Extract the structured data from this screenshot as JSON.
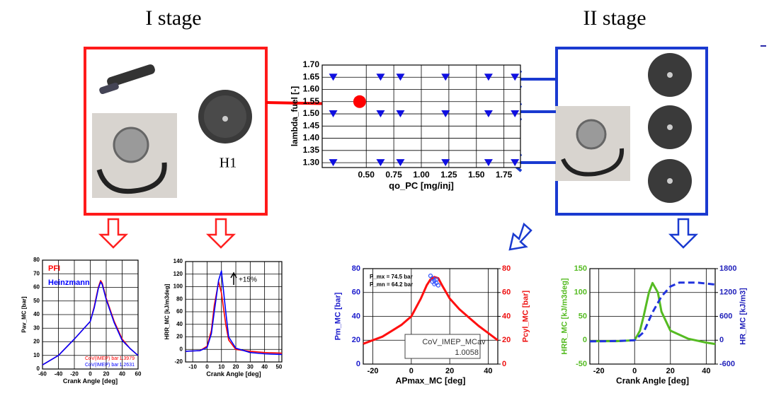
{
  "labels": {
    "stage1": "I stage",
    "stage2": "II stage",
    "h1": "H1"
  },
  "chart_data": [
    {
      "type": "scatter",
      "xlabel": "qo_PC [mg/inj]",
      "ylabel": "lambda_fuel [-]",
      "xlim": [
        0.1,
        1.9
      ],
      "xticks": [
        {
          "value": 0.5,
          "label": "0.50"
        },
        {
          "value": 0.75,
          "label": "0.75"
        },
        {
          "value": 1.0,
          "label": "1.00"
        },
        {
          "value": 1.25,
          "label": "1.25"
        },
        {
          "value": 1.5,
          "label": "1.50"
        },
        {
          "value": 1.75,
          "label": "1.75"
        }
      ],
      "ylim": [
        1.28,
        1.7
      ],
      "yticks": [
        {
          "value": 1.3,
          "label": "1.30"
        },
        1.35,
        {
          "value": 1.4,
          "label": "1.40"
        },
        1.45,
        {
          "value": 1.5,
          "label": "1.50"
        },
        1.55,
        {
          "value": 1.6,
          "label": "1.60"
        },
        1.65,
        {
          "value": 1.7,
          "label": "1.70"
        }
      ],
      "grid": true,
      "series": [
        {
          "color": "#1010e0",
          "marker": "triangle",
          "x": [
            0.2,
            0.63,
            0.81,
            1.22,
            1.61,
            1.85,
            0.2,
            0.63,
            0.81,
            1.22,
            1.61,
            1.85,
            0.2,
            0.63,
            0.81,
            1.22,
            1.61,
            1.85
          ],
          "values": [
            1.65,
            1.65,
            1.65,
            1.65,
            1.65,
            1.65,
            1.5,
            1.5,
            1.5,
            1.5,
            1.5,
            1.5,
            1.3,
            1.3,
            1.3,
            1.3,
            1.3,
            1.3
          ]
        },
        {
          "color": "#ff0000",
          "marker": "circle",
          "x": [
            0.44
          ],
          "values": [
            1.55
          ]
        }
      ]
    },
    {
      "type": "line",
      "xlabel": "Crank Angle [deg]",
      "ylabel": "Pav_MC [bar]",
      "xlim": [
        -60,
        60
      ],
      "xticks": [
        -60,
        -40,
        -20,
        0,
        20,
        40,
        60
      ],
      "ylim": [
        0,
        80
      ],
      "yticks": [
        0,
        10,
        20,
        30,
        40,
        50,
        60,
        70,
        80
      ],
      "grid": true,
      "annotations": [
        "CoV(IMEP)  bar",
        "1.3979",
        "CoV(IMEP)  bar",
        "1.2631"
      ],
      "series": [
        {
          "name": "PFI",
          "color": "#ff0000",
          "x": [
            -60,
            -40,
            -20,
            0,
            5,
            10,
            13,
            15,
            20,
            30,
            40,
            50,
            60
          ],
          "values": [
            3,
            10,
            22,
            35,
            46,
            60,
            65,
            63,
            52,
            35,
            22,
            15,
            10
          ]
        },
        {
          "name": "Heinzmann",
          "color": "#0000ff",
          "x": [
            -60,
            -40,
            -20,
            0,
            5,
            10,
            13,
            15,
            20,
            30,
            40,
            50,
            60
          ],
          "values": [
            3,
            10,
            22,
            35,
            45,
            59,
            64,
            62,
            51,
            34,
            21,
            15,
            10
          ]
        }
      ]
    },
    {
      "type": "line",
      "xlabel": "Crank Angle [deg]",
      "ylabel": "HRR_MC [kJ/m3deg]",
      "xlim": [
        -15,
        52
      ],
      "xticks": [
        -10,
        0,
        10,
        20,
        30,
        40,
        50
      ],
      "ylim": [
        -20,
        140
      ],
      "yticks": [
        -20,
        0,
        20,
        40,
        60,
        80,
        100,
        120,
        140
      ],
      "grid": true,
      "annotations": [
        "+15%"
      ],
      "series": [
        {
          "color": "#ff0000",
          "x": [
            -15,
            -5,
            0,
            3,
            5,
            8,
            10,
            13,
            15,
            20,
            30,
            40,
            52
          ],
          "values": [
            -3,
            -2,
            5,
            30,
            70,
            108,
            90,
            40,
            15,
            0,
            -3,
            -5,
            -6
          ]
        },
        {
          "color": "#0000ff",
          "x": [
            -15,
            -5,
            0,
            3,
            5,
            8,
            10,
            13,
            15,
            20,
            30,
            40,
            52
          ],
          "values": [
            -3,
            -2,
            3,
            25,
            60,
            110,
            125,
            60,
            20,
            2,
            -5,
            -7,
            -8
          ]
        }
      ]
    },
    {
      "type": "line",
      "xlabel": "APmax_MC [deg]",
      "ylabel": "Pm_MC [bar]",
      "y2label": "Pcyl_MC [bar]",
      "ycolor": "#1a1acc",
      "y2color": "#ee1111",
      "xlim": [
        -25,
        45
      ],
      "xticks": [
        -20,
        0,
        20,
        40
      ],
      "ylim": [
        0,
        80
      ],
      "yticks": [
        0,
        20,
        40,
        60,
        80
      ],
      "y2lim": [
        0,
        80
      ],
      "y2ticks": [
        0,
        20,
        40,
        60,
        80
      ],
      "grid": true,
      "annotations": [
        "P_mx = 74.5 bar",
        "P_mn = 64.2 bar",
        "CoV_IMEP_MCav",
        "1.0058"
      ],
      "series": [
        {
          "color": "#ff1010",
          "axis": "y2",
          "x": [
            -25,
            -15,
            -10,
            -5,
            0,
            5,
            8,
            10,
            12,
            14,
            16,
            20,
            25,
            30,
            35,
            40,
            45
          ],
          "values": [
            17,
            23,
            28,
            33,
            40,
            55,
            66,
            71,
            73,
            72,
            66,
            55,
            46,
            39,
            32,
            26,
            20
          ]
        },
        {
          "color": "#3355ff",
          "marker": "circle",
          "x": [
            10,
            11,
            12,
            12,
            13,
            14,
            11,
            13
          ],
          "values": [
            74,
            72,
            70,
            67,
            68,
            66,
            69,
            71
          ]
        }
      ]
    },
    {
      "type": "line",
      "xlabel": "Crank Angle [deg]",
      "ylabel": "HRR_MC [kJ/m3deg]",
      "y2label": "HR_MC [kJ/m3]",
      "ycolor": "#55bb22",
      "y2color": "#2222bb",
      "xlim": [
        -25,
        45
      ],
      "xticks": [
        -20,
        0,
        20,
        40
      ],
      "ylim": [
        -50,
        150
      ],
      "yticks": [
        -50,
        0,
        50,
        100,
        150
      ],
      "y2lim": [
        -600,
        1800
      ],
      "y2ticks": [
        -600,
        0,
        600,
        1200,
        1800
      ],
      "grid": true,
      "series": [
        {
          "color": "#55bb22",
          "x": [
            -25,
            -10,
            0,
            3,
            5,
            8,
            10,
            13,
            15,
            20,
            30,
            40,
            45
          ],
          "values": [
            -2,
            -2,
            0,
            20,
            50,
            100,
            120,
            100,
            60,
            20,
            3,
            -5,
            -8
          ]
        },
        {
          "color": "#2233dd",
          "axis": "y2",
          "dash": true,
          "x": [
            -25,
            -10,
            0,
            5,
            10,
            15,
            20,
            25,
            35,
            45
          ],
          "values": [
            -30,
            -20,
            0,
            200,
            700,
            1100,
            1350,
            1450,
            1450,
            1400
          ]
        }
      ]
    }
  ]
}
